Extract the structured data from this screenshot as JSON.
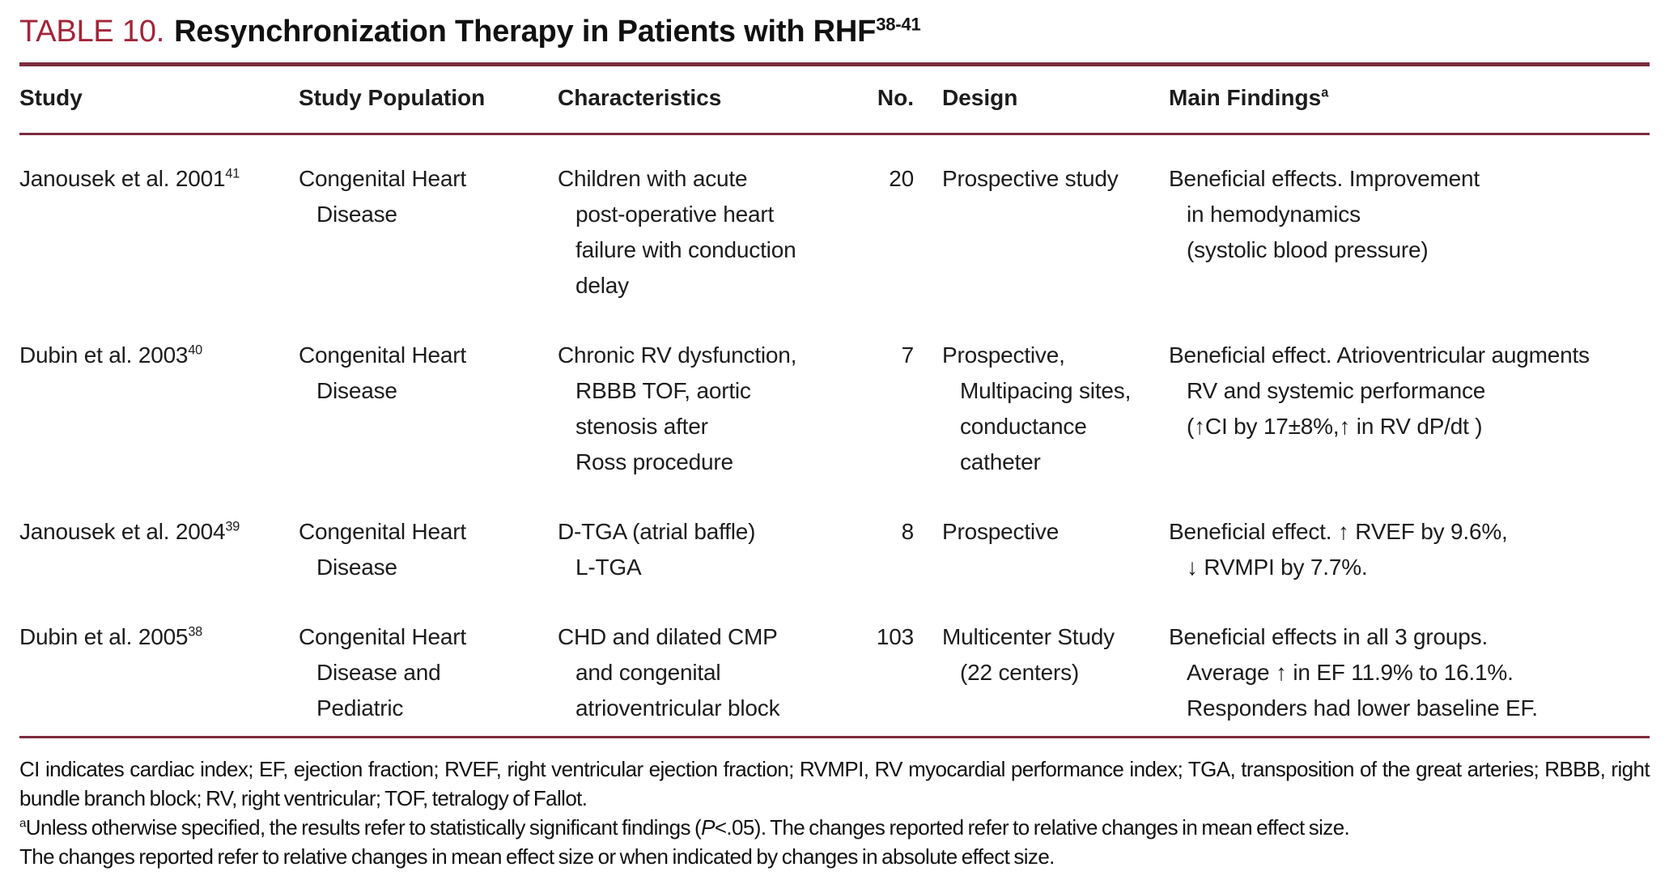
{
  "table": {
    "label": "TABLE 10.",
    "title": "Resynchronization Therapy in Patients with RHF",
    "title_sup": "38-41",
    "colors": {
      "accent_text": "#A12639",
      "rule": "#7D2B3D",
      "body_text": "#1c1c1c",
      "background": "#ffffff"
    },
    "columns": {
      "study": "Study",
      "population": "Study Population",
      "characteristics": "Characteristics",
      "no": "No.",
      "design": "Design",
      "findings": "Main Findings",
      "findings_sup": "a"
    },
    "rows": [
      {
        "study": "Janousek et al. 2001",
        "study_sup": "41",
        "population": "Congenital Heart\nDisease",
        "characteristics": "Children with acute\npost-operative heart\nfailure with conduction\ndelay",
        "no": "20",
        "design": "Prospective study",
        "findings": "Beneficial effects. Improvement\nin hemodynamics\n(systolic blood pressure)"
      },
      {
        "study": "Dubin et al. 2003",
        "study_sup": "40",
        "population": "Congenital Heart\nDisease",
        "characteristics": "Chronic RV dysfunction,\nRBBB TOF, aortic\nstenosis after\nRoss procedure",
        "no": "7",
        "design": "Prospective,\nMultipacing sites,\nconductance\ncatheter",
        "findings": "Beneficial effect. Atrioventricular augments\nRV and systemic performance\n(↑CI by 17±8%,↑ in RV dP/dt )"
      },
      {
        "study": "Janousek et al. 2004",
        "study_sup": "39",
        "population": "Congenital Heart\nDisease",
        "characteristics": "D-TGA (atrial baffle)\nL-TGA",
        "no": "8",
        "design": "Prospective",
        "findings": "Beneficial effect. ↑ RVEF by 9.6%,\n↓ RVMPI by 7.7%."
      },
      {
        "study": "Dubin et al. 2005",
        "study_sup": "38",
        "population": "Congenital Heart\nDisease and\nPediatric",
        "characteristics": "CHD and dilated CMP\nand congenital\natrioventricular block",
        "no": "103",
        "design": "Multicenter Study\n(22 centers)",
        "findings": "Beneficial effects in all 3 groups.\nAverage ↑ in EF 11.9% to 16.1%.\nResponders had lower baseline EF."
      }
    ],
    "footnotes": {
      "abbreviations": "CI indicates cardiac index; EF, ejection fraction; RVEF, right ventricular ejection fraction; RVMPI, RV myocardial performance index; TGA, transposition of the great arteries; RBBB, right bundle branch block; RV, right ventricular; TOF, tetralogy of Fallot.",
      "note_a_sup": "a",
      "note_a_pre": "Unless otherwise specified, the results refer to statistically significant findings (",
      "note_a_italic": "P",
      "note_a_post": "<.05). The changes reported refer to relative changes in mean effect size.",
      "note_b": "The changes reported refer to relative changes in mean effect size or when indicated by changes in absolute effect size."
    }
  }
}
